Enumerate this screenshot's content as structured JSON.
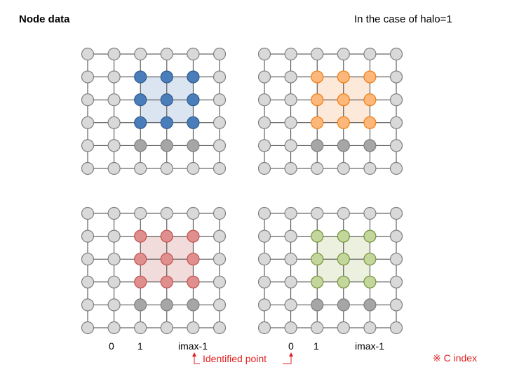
{
  "title": "Node data",
  "case_note": "In the case of halo=1",
  "c_index_note": "※ C index",
  "identified_point": "Identified point",
  "axis_labels": {
    "left": {
      "zero": "0",
      "one": "1",
      "imax": "imax-1"
    },
    "right": {
      "zero": "0",
      "one": "1",
      "imax": "imax-1"
    }
  },
  "grid": {
    "cols": 6,
    "rows": 6
  },
  "colors": {
    "node_gray": "#d9d9d9",
    "node_dark_gray": "#a6a6a6",
    "node_border": "#7f7f7f",
    "blue": {
      "fill": "#4a7ebb",
      "stroke": "#2e5a8c",
      "region": "#dbe5f1"
    },
    "orange": {
      "fill": "#fcb77a",
      "stroke": "#f07c10",
      "region": "#fde9d9"
    },
    "red": {
      "fill": "#e08f8f",
      "stroke": "#c0504d",
      "region": "#f2dcdb"
    },
    "green": {
      "fill": "#c3d69b",
      "stroke": "#76923c",
      "region": "#ebf1de"
    },
    "annotation": "#e02020"
  },
  "panels": [
    {
      "name": "top-left",
      "color": "blue"
    },
    {
      "name": "top-right",
      "color": "orange"
    },
    {
      "name": "bottom-left",
      "color": "red"
    },
    {
      "name": "bottom-right",
      "color": "green"
    }
  ]
}
